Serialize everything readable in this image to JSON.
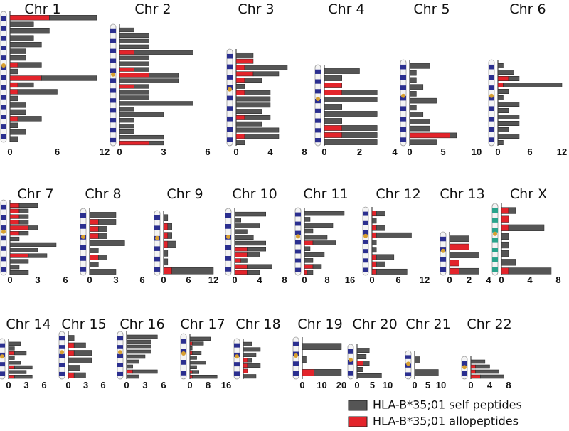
{
  "legend": [
    {
      "name": "HLA-B*35;01 self peptides",
      "color": "#555555"
    },
    {
      "name": "HLA-B*35;01 allopeptides",
      "color": "#e3242b"
    }
  ],
  "chart_data": [
    {
      "type": "bar",
      "title": "Chr 1",
      "xlim": [
        0,
        12
      ],
      "xticks": [
        0,
        6,
        12
      ],
      "series": [
        {
          "values": [
            6,
            3,
            5,
            3,
            4,
            2,
            2,
            3,
            1,
            7,
            2,
            5,
            1,
            2,
            2,
            3,
            1,
            2,
            1
          ]
        },
        {
          "values": [
            5,
            0,
            0,
            0,
            0,
            0,
            0,
            1,
            0,
            4,
            1,
            1,
            0,
            0,
            0,
            1,
            0,
            0,
            0
          ]
        }
      ]
    },
    {
      "type": "bar",
      "title": "Chr 2",
      "xlim": [
        0,
        6
      ],
      "xticks": [
        0,
        3,
        6
      ],
      "series": [
        {
          "values": [
            1,
            2,
            2,
            2,
            4,
            2,
            2,
            1,
            2,
            4,
            1,
            2,
            2,
            5,
            1,
            3,
            1,
            1,
            1,
            3,
            1
          ]
        },
        {
          "values": [
            0,
            0,
            0,
            0,
            1,
            0,
            0,
            1,
            2,
            0,
            1,
            0,
            0,
            0,
            0,
            0,
            0,
            0,
            0,
            0,
            2
          ]
        }
      ]
    },
    {
      "type": "bar",
      "title": "Chr 3",
      "xlim": [
        0,
        8
      ],
      "xticks": [
        0,
        4,
        8
      ],
      "series": [
        {
          "values": [
            2,
            0,
            5,
            3,
            2,
            1,
            3,
            4,
            4,
            3,
            3,
            3,
            5,
            4,
            1
          ]
        },
        {
          "values": [
            0,
            2,
            1,
            2,
            1,
            0,
            1,
            0,
            0,
            0,
            1,
            0,
            0,
            1,
            0
          ]
        }
      ]
    },
    {
      "type": "bar",
      "title": "Chr 4",
      "xlim": [
        0,
        4
      ],
      "xticks": [
        0,
        2,
        4
      ],
      "series": [
        {
          "values": [
            2,
            1,
            0,
            2,
            3,
            1,
            3,
            1,
            2,
            2,
            3
          ]
        },
        {
          "values": [
            0,
            0,
            1,
            1,
            0,
            0,
            0,
            0,
            1,
            1,
            0
          ]
        }
      ]
    },
    {
      "type": "bar",
      "title": "Chr 5",
      "xlim": [
        0,
        10
      ],
      "xticks": [
        0,
        5,
        10
      ],
      "series": [
        {
          "values": [
            3,
            1,
            1,
            2,
            1,
            4,
            1,
            2,
            3,
            3,
            1,
            4
          ]
        },
        {
          "values": [
            0,
            0,
            0,
            0,
            0,
            0,
            0,
            0,
            0,
            0,
            6,
            0
          ]
        }
      ]
    },
    {
      "type": "bar",
      "title": "Chr 6",
      "xlim": [
        0,
        12
      ],
      "xticks": [
        0,
        6,
        12
      ],
      "series": [
        {
          "values": [
            1,
            3,
            2,
            11,
            2,
            1,
            4,
            2,
            4,
            4,
            2,
            4,
            1
          ]
        },
        {
          "values": [
            0,
            0,
            2,
            1,
            0,
            0,
            0,
            0,
            0,
            0,
            0,
            0,
            0
          ]
        }
      ]
    },
    {
      "type": "bar",
      "title": "Chr 7",
      "xlim": [
        0,
        6
      ],
      "xticks": [
        0,
        3,
        6
      ],
      "series": [
        {
          "values": [
            2,
            1,
            1,
            1,
            1,
            1,
            1,
            5,
            3,
            2,
            2,
            1,
            2
          ]
        },
        {
          "values": [
            1,
            1,
            1,
            1,
            2,
            1,
            0,
            0,
            0,
            2,
            0,
            0,
            0
          ]
        }
      ]
    },
    {
      "type": "bar",
      "title": "Chr 8",
      "xlim": [
        0,
        6
      ],
      "xticks": [
        0,
        3,
        6
      ],
      "series": [
        {
          "values": [
            3,
            2,
            1,
            1,
            4,
            1,
            1,
            1,
            3
          ]
        },
        {
          "values": [
            0,
            1,
            1,
            1,
            0,
            0,
            1,
            0,
            0
          ]
        }
      ]
    },
    {
      "type": "bar",
      "title": "Chr 9",
      "xlim": [
        0,
        12
      ],
      "xticks": [
        0,
        6,
        12
      ],
      "series": [
        {
          "values": [
            1,
            1,
            1,
            2,
            1,
            1,
            10
          ]
        },
        {
          "values": [
            0,
            1,
            1,
            1,
            0,
            0,
            2
          ]
        }
      ]
    },
    {
      "type": "bar",
      "title": "Chr 10",
      "xlim": [
        0,
        8
      ],
      "xticks": [
        0,
        4,
        8
      ],
      "series": [
        {
          "values": [
            5,
            1,
            4,
            2,
            3,
            5,
            3,
            2,
            1,
            4,
            2
          ]
        },
        {
          "values": [
            0,
            0,
            0,
            0,
            0,
            0,
            2,
            2,
            1,
            2,
            2
          ]
        }
      ]
    },
    {
      "type": "bar",
      "title": "Chr 11",
      "xlim": [
        0,
        16
      ],
      "xticks": [
        0,
        8,
        16
      ],
      "series": [
        {
          "values": [
            14,
            2,
            10,
            3,
            8,
            8,
            2,
            7,
            3,
            3,
            2
          ]
        },
        {
          "values": [
            0,
            0,
            0,
            0,
            0,
            3,
            0,
            0,
            0,
            3,
            1
          ]
        }
      ]
    },
    {
      "type": "bar",
      "title": "Chr 12",
      "xlim": [
        0,
        12
      ],
      "xticks": [
        0,
        6,
        12
      ],
      "series": [
        {
          "values": [
            2,
            1,
            2,
            8,
            1,
            1,
            4,
            2,
            7
          ]
        },
        {
          "values": [
            1,
            0,
            1,
            1,
            0,
            0,
            1,
            1,
            1
          ]
        }
      ]
    },
    {
      "type": "bar",
      "title": "Chr 13",
      "xlim": [
        0,
        4
      ],
      "xticks": [
        0,
        2,
        4
      ],
      "series": [
        {
          "values": [
            2,
            0,
            3,
            0,
            2
          ]
        },
        {
          "values": [
            0,
            2,
            0,
            1,
            1
          ]
        }
      ]
    },
    {
      "type": "bar",
      "title": "Chr X",
      "xlim": [
        0,
        8
      ],
      "xticks": [
        0,
        4,
        8
      ],
      "series": [
        {
          "values": [
            1,
            0,
            5,
            1,
            1,
            1,
            2,
            6
          ]
        },
        {
          "values": [
            1,
            1,
            1,
            0,
            0,
            0,
            0,
            1
          ]
        }
      ]
    },
    {
      "type": "bar",
      "title": "Chr 14",
      "xlim": [
        0,
        6
      ],
      "xticks": [
        0,
        3,
        6
      ],
      "series": [
        {
          "values": [
            2,
            1,
            2,
            1,
            2,
            3,
            3,
            3
          ]
        },
        {
          "values": [
            0,
            0,
            1,
            0,
            0,
            1,
            0,
            1
          ]
        }
      ]
    },
    {
      "type": "bar",
      "title": "Chr 15",
      "xlim": [
        0,
        6
      ],
      "xticks": [
        0,
        3,
        6
      ],
      "series": [
        {
          "values": [
            1,
            2,
            3,
            4,
            2,
            2
          ]
        },
        {
          "values": [
            0,
            1,
            1,
            0,
            0,
            1
          ]
        }
      ]
    },
    {
      "type": "bar",
      "title": "Chr 16",
      "xlim": [
        0,
        6
      ],
      "xticks": [
        0,
        3,
        6
      ],
      "series": [
        {
          "values": [
            5,
            4,
            4,
            4,
            3,
            2,
            1,
            4,
            2
          ]
        },
        {
          "values": [
            0,
            0,
            0,
            0,
            0,
            0,
            0,
            1,
            0
          ]
        }
      ]
    },
    {
      "type": "bar",
      "title": "Chr 17",
      "xlim": [
        0,
        16
      ],
      "xticks": [
        0,
        8,
        16
      ],
      "series": [
        {
          "values": [
            9,
            5,
            1,
            4,
            3,
            7,
            3,
            3,
            11
          ]
        },
        {
          "values": [
            0,
            1,
            0,
            1,
            0,
            0,
            0,
            1,
            1
          ]
        }
      ]
    },
    {
      "type": "bar",
      "title": "Chr 18",
      "xlim": [
        0,
        6
      ],
      "xticks": [],
      "series": [
        {
          "values": [
            2,
            4,
            3,
            1,
            3,
            0,
            3
          ]
        },
        {
          "values": [
            0,
            0,
            0,
            1,
            1,
            1,
            0
          ]
        }
      ]
    },
    {
      "type": "bar",
      "title": "Chr 19",
      "xlim": [
        0,
        20
      ],
      "xticks": [
        0,
        10,
        20
      ],
      "series": [
        {
          "values": [
            20,
            2,
            14
          ]
        },
        {
          "values": [
            0,
            0,
            6
          ]
        }
      ]
    },
    {
      "type": "bar",
      "title": "Chr 20",
      "xlim": [
        0,
        10
      ],
      "xticks": [
        0,
        5,
        10
      ],
      "series": [
        {
          "values": [
            4,
            3,
            2,
            2,
            8
          ]
        },
        {
          "values": [
            0,
            0,
            2,
            0,
            0
          ]
        }
      ]
    },
    {
      "type": "bar",
      "title": "Chr 21",
      "xlim": [
        0,
        10
      ],
      "xticks": [
        0,
        5,
        10
      ],
      "series": [
        {
          "values": [
            2,
            9
          ]
        },
        {
          "values": [
            0,
            0
          ]
        }
      ]
    },
    {
      "type": "bar",
      "title": "Chr 22",
      "xlim": [
        0,
        8
      ],
      "xticks": [
        0,
        4,
        8
      ],
      "series": [
        {
          "values": [
            3,
            3,
            5,
            5
          ]
        },
        {
          "values": [
            0,
            1,
            1,
            2
          ]
        }
      ]
    }
  ]
}
